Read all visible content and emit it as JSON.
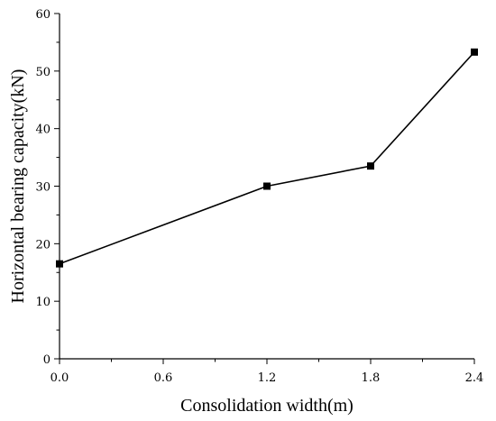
{
  "chart_data": {
    "type": "line",
    "title": "",
    "xlabel": "Consolidation width(m)",
    "ylabel": "Horizontal bearing capacity(kN)",
    "xlim": [
      0.0,
      2.4
    ],
    "ylim": [
      0,
      60
    ],
    "xticks": [
      "0.0",
      "0.6",
      "1.2",
      "1.8",
      "2.4"
    ],
    "yticks": [
      "0",
      "10",
      "20",
      "30",
      "40",
      "50",
      "60"
    ],
    "grid": false,
    "series": [
      {
        "x": [
          0.0,
          1.2,
          1.8,
          2.4
        ],
        "y": [
          16.5,
          30.0,
          33.5,
          53.3
        ],
        "marker": "square",
        "color": "#000000"
      }
    ]
  }
}
